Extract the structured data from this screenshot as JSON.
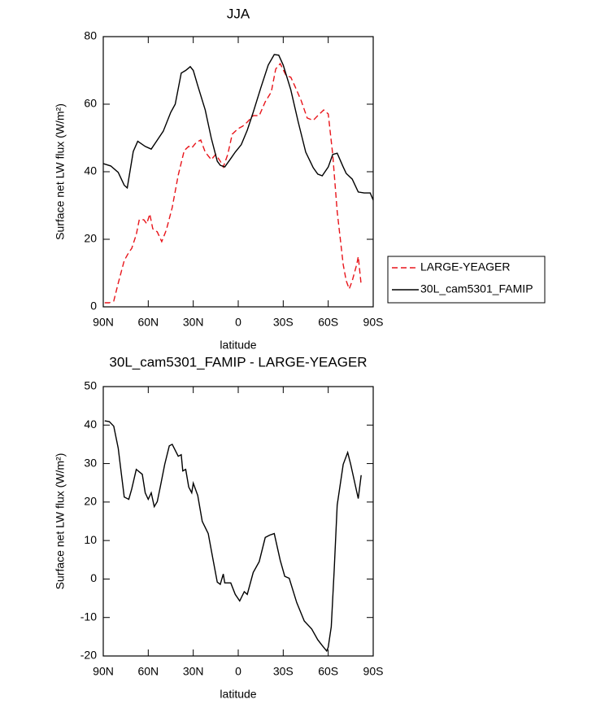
{
  "chart_data": [
    {
      "type": "line",
      "title": "JJA",
      "xlabel": "latitude",
      "ylabel": "Surface net LW flux (W/m²)",
      "xlim": [
        90,
        -90
      ],
      "xticks": [
        {
          "value": 90,
          "label": "90N"
        },
        {
          "value": 60,
          "label": "60N"
        },
        {
          "value": 30,
          "label": "30N"
        },
        0,
        {
          "value": -30,
          "label": "30S"
        },
        {
          "value": -60,
          "label": "60S"
        },
        {
          "value": -90,
          "label": "90S"
        }
      ],
      "ylim": [
        0,
        80
      ],
      "yticks": [
        0,
        20,
        40,
        60,
        80
      ],
      "legend": "right",
      "series": [
        {
          "name": "LARGE-YEAGER",
          "color": "#e8141a",
          "style": "dashed",
          "x": [
            89,
            86,
            83,
            80,
            76,
            73,
            71,
            68,
            66,
            63,
            61,
            59,
            57,
            54,
            51,
            48,
            44,
            40,
            36,
            33,
            31,
            28,
            25,
            22,
            18,
            15,
            12,
            10,
            7,
            4,
            0,
            -3,
            -6,
            -10,
            -14,
            -18,
            -22,
            -25,
            -28,
            -32,
            -35,
            -38,
            -42,
            -46,
            -50,
            -53,
            -57,
            -60,
            -63,
            -66,
            -70,
            -72,
            -74,
            -76,
            -79,
            -80,
            -82
          ],
          "values": [
            1.2,
            1.2,
            1.7,
            7,
            13.7,
            16.1,
            17.3,
            21.4,
            25.8,
            25.8,
            24.6,
            27.5,
            23.1,
            22.2,
            19.3,
            22.7,
            29.4,
            39,
            46.3,
            47.5,
            47,
            48.7,
            49.4,
            45.8,
            43.6,
            45.1,
            43.1,
            41.4,
            45.1,
            51.1,
            52.8,
            53.5,
            54.7,
            56.6,
            56.6,
            60.7,
            63.6,
            70.4,
            72,
            68.4,
            68,
            65.1,
            61,
            55.9,
            55.2,
            56.6,
            58.3,
            57.1,
            45.1,
            28.2,
            12.5,
            7.7,
            5.3,
            7.7,
            12.5,
            14.9,
            6.5
          ]
        },
        {
          "name": "30L_cam5301_FAMIP",
          "color": "#000000",
          "style": "solid",
          "x": [
            90,
            85,
            80,
            76,
            74,
            70,
            67,
            62,
            58,
            55,
            50,
            45,
            42,
            38,
            35,
            32,
            30,
            27,
            22,
            18,
            14,
            12,
            9,
            5,
            2,
            -2,
            -6,
            -10,
            -15,
            -20,
            -24,
            -27,
            -30,
            -35,
            -40,
            -45,
            -50,
            -53,
            -56,
            -60,
            -63,
            -66,
            -70,
            -72,
            -76,
            -80,
            -84,
            -88,
            -90
          ],
          "values": [
            42.4,
            41.7,
            39.8,
            36,
            35.2,
            46,
            49,
            47.5,
            46.7,
            48.7,
            52,
            57.6,
            60,
            69.2,
            70,
            71.1,
            70,
            65.5,
            58.3,
            50,
            43.1,
            41.9,
            41.4,
            43.9,
            45.8,
            48,
            52.3,
            57.6,
            64.8,
            71.6,
            74.7,
            74.5,
            71.6,
            64.3,
            54.7,
            45.8,
            41.2,
            39.3,
            38.8,
            41.4,
            45.1,
            45.5,
            41.4,
            39.5,
            37.8,
            34,
            33.7,
            33.7,
            31.6
          ]
        }
      ]
    },
    {
      "type": "line",
      "title": "30L_cam5301_FAMIP - LARGE-YEAGER",
      "xlabel": "latitude",
      "ylabel": "Surface net LW flux (W/m²)",
      "xlim": [
        90,
        -90
      ],
      "xticks": [
        {
          "value": 90,
          "label": "90N"
        },
        {
          "value": 60,
          "label": "60N"
        },
        {
          "value": 30,
          "label": "30N"
        },
        0,
        {
          "value": -30,
          "label": "30S"
        },
        {
          "value": -60,
          "label": "60S"
        },
        {
          "value": -90,
          "label": "90S"
        }
      ],
      "ylim": [
        -20,
        50
      ],
      "yticks": [
        -20,
        -10,
        0,
        10,
        20,
        30,
        40,
        50
      ],
      "series": [
        {
          "color": "#000000",
          "style": "solid",
          "x": [
            89,
            86,
            83,
            80,
            78,
            76,
            73,
            71,
            68,
            64,
            62,
            60,
            58,
            56,
            54,
            52,
            49,
            46,
            44,
            40,
            38,
            37,
            35,
            33,
            31,
            30,
            27,
            24,
            20,
            17,
            14,
            12,
            10,
            9,
            5,
            2,
            -1,
            -4,
            -6,
            -10,
            -14,
            -18,
            -21,
            -24,
            -28,
            -31,
            -34,
            -39,
            -44,
            -49,
            -53,
            -56,
            -59,
            -60,
            -62,
            -64,
            -66,
            -70,
            -73,
            -75,
            -80,
            -82
          ],
          "values": [
            41.1,
            40.9,
            39.7,
            34,
            27.6,
            21.3,
            20.7,
            23.4,
            28.5,
            27.2,
            22.4,
            20.7,
            22.4,
            18.8,
            20.1,
            23.9,
            29.8,
            34.6,
            35,
            31.9,
            32.3,
            28.1,
            28.5,
            23.9,
            22.4,
            24.9,
            21.7,
            15,
            11.8,
            5.5,
            -0.8,
            -1.4,
            1.3,
            -1,
            -1,
            -4,
            -5.7,
            -3.3,
            -4,
            1.7,
            4.5,
            10.8,
            11.4,
            11.8,
            4.9,
            0.7,
            0.2,
            -6.1,
            -10.9,
            -13,
            -15.8,
            -17.3,
            -18.7,
            -17.7,
            -12.4,
            2.3,
            19.2,
            29.8,
            32.9,
            29.8,
            20.9,
            27
          ]
        }
      ]
    }
  ]
}
